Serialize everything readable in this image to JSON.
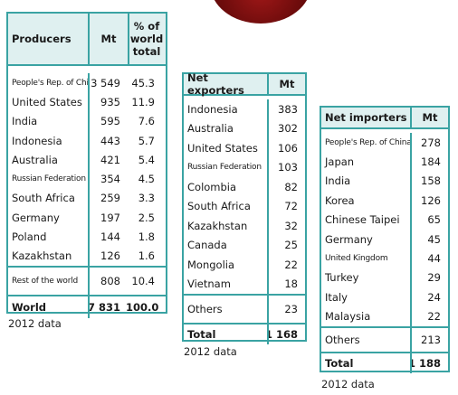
{
  "producers": {
    "headers": [
      "Producers",
      "Mt",
      "% of world total"
    ],
    "rows": [
      {
        "name": "People's Rep. of China",
        "mt": "3 549",
        "pct": "45.3"
      },
      {
        "name": "United States",
        "mt": "935",
        "pct": "11.9"
      },
      {
        "name": "India",
        "mt": "595",
        "pct": "7.6"
      },
      {
        "name": "Indonesia",
        "mt": "443",
        "pct": "5.7"
      },
      {
        "name": "Australia",
        "mt": "421",
        "pct": "5.4"
      },
      {
        "name": "Russian Federation",
        "mt": "354",
        "pct": "4.5"
      },
      {
        "name": "South Africa",
        "mt": "259",
        "pct": "3.3"
      },
      {
        "name": "Germany",
        "mt": "197",
        "pct": "2.5"
      },
      {
        "name": "Poland",
        "mt": "144",
        "pct": "1.8"
      },
      {
        "name": "Kazakhstan",
        "mt": "126",
        "pct": "1.6"
      }
    ],
    "rest": {
      "name": "Rest of the world",
      "mt": "808",
      "pct": "10.4"
    },
    "world": {
      "name": "World",
      "mt": "7 831",
      "pct": "100.0"
    },
    "note": "2012 data"
  },
  "exporters": {
    "headers": [
      "Net exporters",
      "Mt"
    ],
    "rows": [
      {
        "name": "Indonesia",
        "mt": "383"
      },
      {
        "name": "Australia",
        "mt": "302"
      },
      {
        "name": "United States",
        "mt": "106"
      },
      {
        "name": "Russian Federation",
        "mt": "103"
      },
      {
        "name": "Colombia",
        "mt": "82"
      },
      {
        "name": "South Africa",
        "mt": "72"
      },
      {
        "name": "Kazakhstan",
        "mt": "32"
      },
      {
        "name": "Canada",
        "mt": "25"
      },
      {
        "name": "Mongolia",
        "mt": "22"
      },
      {
        "name": "Vietnam",
        "mt": "18"
      }
    ],
    "others": {
      "name": "Others",
      "mt": "23"
    },
    "total": {
      "name": "Total",
      "mt": "1 168"
    },
    "note": "2012 data"
  },
  "importers": {
    "headers": [
      "Net importers",
      "Mt"
    ],
    "rows": [
      {
        "name": "People's Rep. of China",
        "mt": "278"
      },
      {
        "name": "Japan",
        "mt": "184"
      },
      {
        "name": "India",
        "mt": "158"
      },
      {
        "name": "Korea",
        "mt": "126"
      },
      {
        "name": "Chinese Taipei",
        "mt": "65"
      },
      {
        "name": "Germany",
        "mt": "45"
      },
      {
        "name": "United Kingdom",
        "mt": "44"
      },
      {
        "name": "Turkey",
        "mt": "29"
      },
      {
        "name": "Italy",
        "mt": "24"
      },
      {
        "name": "Malaysia",
        "mt": "22"
      }
    ],
    "others": {
      "name": "Others",
      "mt": "213"
    },
    "total": {
      "name": "Total",
      "mt": "1 188"
    },
    "note": "2012 data"
  },
  "colors": {
    "border": "#3aa3a3",
    "header_bg": "#dff0f0"
  }
}
